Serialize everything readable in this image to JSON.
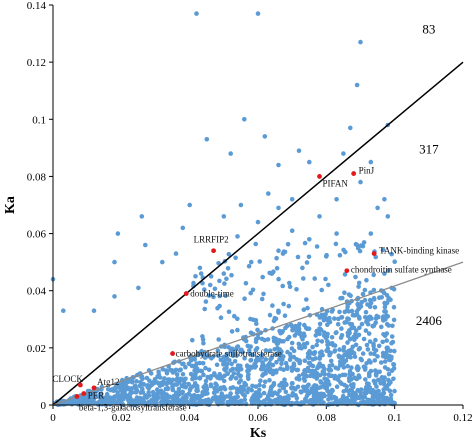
{
  "chart_data": {
    "type": "scatter",
    "title": "",
    "xlabel": "Ks",
    "ylabel": "Ka",
    "xlim": [
      0,
      0.12
    ],
    "ylim": [
      0,
      0.14
    ],
    "xticks": [
      "0",
      "0.02",
      "0.04",
      "0.06",
      "0.08",
      "0.1",
      "0.12"
    ],
    "yticks": [
      "0",
      "0.02",
      "0.04",
      "0.06",
      "0.08",
      "0.1",
      "0.12",
      "0.14"
    ],
    "grid": false,
    "legend": "none",
    "colors": {
      "points": "#5b9bd5",
      "highlight": "#e3191c",
      "diagonal": "#000000",
      "trend": "#8c8c8c"
    },
    "lines": [
      {
        "kind": "Ka=Ks",
        "x": [
          0,
          0.12
        ],
        "y": [
          0,
          0.12
        ]
      },
      {
        "kind": "trend",
        "x": [
          0,
          0.12
        ],
        "y": [
          0,
          0.05
        ]
      }
    ],
    "region_counts": [
      {
        "label": "83",
        "x": 0.11,
        "y": 0.13
      },
      {
        "label": "317",
        "x": 0.11,
        "y": 0.088
      },
      {
        "label": "2406",
        "x": 0.11,
        "y": 0.028
      }
    ],
    "annotated_genes": [
      {
        "label": "PinJ",
        "x": 0.088,
        "y": 0.081
      },
      {
        "label": "PIFAN",
        "x": 0.078,
        "y": 0.08
      },
      {
        "label": "LRRFIP2",
        "x": 0.047,
        "y": 0.054
      },
      {
        "label": "TANK-binding kinase",
        "x": 0.094,
        "y": 0.053
      },
      {
        "label": "chondroitin sulfate synthase",
        "x": 0.086,
        "y": 0.047
      },
      {
        "label": "double-time",
        "x": 0.039,
        "y": 0.039
      },
      {
        "label": "carbohydrate sulfotransferase",
        "x": 0.035,
        "y": 0.018
      },
      {
        "label": "CLOCK",
        "x": 0.008,
        "y": 0.007
      },
      {
        "label": "Atg12",
        "x": 0.012,
        "y": 0.006
      },
      {
        "label": "PER",
        "x": 0.009,
        "y": 0.004
      },
      {
        "label": "beta-1,3-galactosyltransferase",
        "x": 0.007,
        "y": 0.003
      }
    ],
    "outliers": [
      [
        0.042,
        0.137
      ],
      [
        0.06,
        0.137
      ],
      [
        0.09,
        0.127
      ],
      [
        0.0,
        0.044
      ],
      [
        0.003,
        0.033
      ],
      [
        0.056,
        0.1
      ],
      [
        0.045,
        0.093
      ],
      [
        0.062,
        0.094
      ],
      [
        0.089,
        0.112
      ],
      [
        0.087,
        0.097
      ],
      [
        0.072,
        0.089
      ],
      [
        0.085,
        0.088
      ],
      [
        0.052,
        0.088
      ],
      [
        0.075,
        0.085
      ],
      [
        0.098,
        0.098
      ],
      [
        0.093,
        0.085
      ],
      [
        0.066,
        0.084
      ],
      [
        0.09,
        0.078
      ],
      [
        0.083,
        0.072
      ],
      [
        0.097,
        0.072
      ],
      [
        0.07,
        0.072
      ],
      [
        0.063,
        0.074
      ],
      [
        0.055,
        0.07
      ],
      [
        0.04,
        0.07
      ],
      [
        0.095,
        0.069
      ],
      [
        0.05,
        0.066
      ],
      [
        0.078,
        0.066
      ],
      [
        0.06,
        0.064
      ],
      [
        0.026,
        0.066
      ],
      [
        0.019,
        0.06
      ],
      [
        0.038,
        0.062
      ],
      [
        0.07,
        0.061
      ],
      [
        0.083,
        0.06
      ],
      [
        0.093,
        0.06
      ],
      [
        0.027,
        0.056
      ],
      [
        0.018,
        0.05
      ],
      [
        0.032,
        0.05
      ],
      [
        0.058,
        0.05
      ],
      [
        0.05,
        0.046
      ],
      [
        0.012,
        0.033
      ],
      [
        0.018,
        0.038
      ],
      [
        0.025,
        0.041
      ],
      [
        0.046,
        0.042
      ],
      [
        0.098,
        0.066
      ],
      [
        0.097,
        0.046
      ],
      [
        0.036,
        0.053
      ],
      [
        0.066,
        0.054
      ],
      [
        0.075,
        0.058
      ],
      [
        0.064,
        0.046
      ],
      [
        0.073,
        0.048
      ],
      [
        0.08,
        0.052
      ],
      [
        0.089,
        0.056
      ],
      [
        0.043,
        0.048
      ],
      [
        0.054,
        0.059
      ],
      [
        0.066,
        0.069
      ]
    ]
  }
}
